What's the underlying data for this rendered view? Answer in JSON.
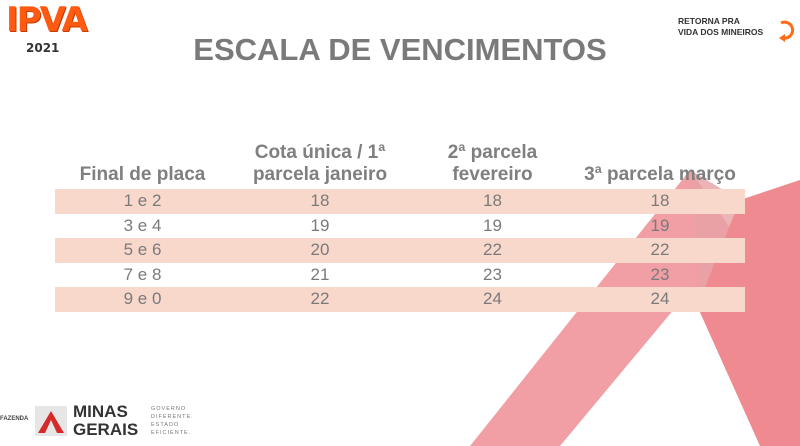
{
  "header": {
    "logo_left": "IPVA",
    "logo_left_year": "2021",
    "logo_right_line1": "RETORNA PRA",
    "logo_right_line2": "VIDA DOS MINEIROS",
    "title": "ESCALA DE VENCIMENTOS"
  },
  "table": {
    "headers": [
      "Final de placa",
      "Cota única / 1ª parcela janeiro",
      "2ª parcela fevereiro",
      "3ª parcela março"
    ],
    "rows": [
      [
        "1 e 2",
        "18",
        "18",
        "18"
      ],
      [
        "3 e 4",
        "19",
        "19",
        "19"
      ],
      [
        "5 e 6",
        "20",
        "22",
        "22"
      ],
      [
        "7 e 8",
        "21",
        "23",
        "23"
      ],
      [
        "9 e 0",
        "22",
        "24",
        "24"
      ]
    ],
    "stripe_color": "#f9d8cc"
  },
  "footer": {
    "fazenda": "FAZENDA",
    "minas_line1": "MINAS",
    "minas_line2": "GERAIS",
    "gov_lines": [
      "GOVERNO",
      "DIFERENTE.",
      "ESTADO",
      "EFICIENTE."
    ]
  },
  "colors": {
    "accent": "#ff5a12",
    "decor": "#ef8a90",
    "title": "#7a7a7a"
  }
}
